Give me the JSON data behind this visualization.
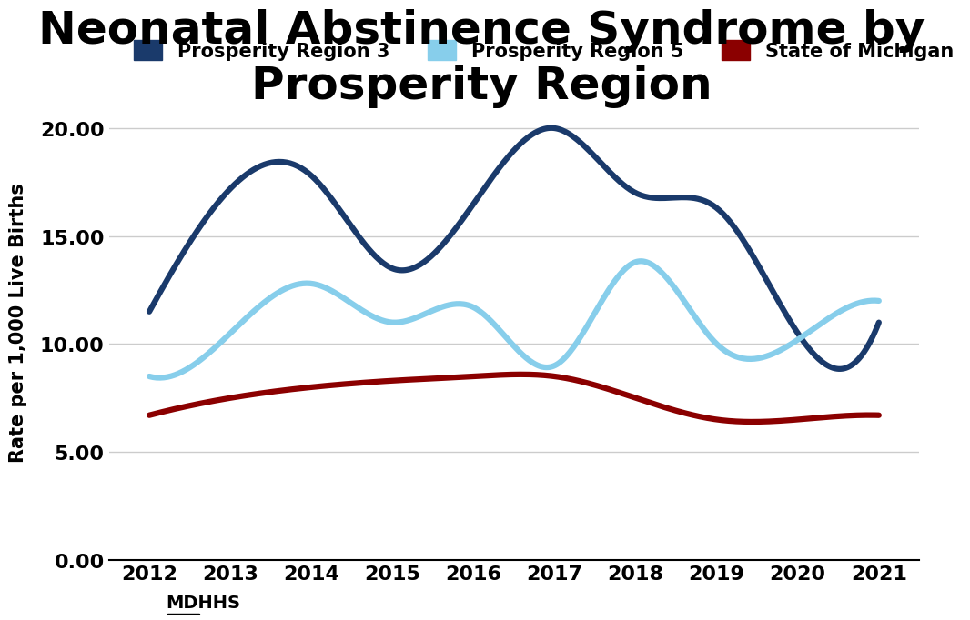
{
  "title_line1": "Neonatal Abstinence Syndrome by",
  "title_line2": "Prosperity Region",
  "years": [
    2012,
    2013,
    2014,
    2015,
    2016,
    2017,
    2018,
    2019,
    2020,
    2021
  ],
  "region3": [
    11.5,
    17.2,
    17.8,
    13.5,
    16.5,
    20.0,
    17.0,
    16.3,
    10.5,
    11.0
  ],
  "region5": [
    8.5,
    10.5,
    12.8,
    11.0,
    11.7,
    9.0,
    13.8,
    10.0,
    10.2,
    12.0
  ],
  "michigan": [
    6.7,
    7.5,
    8.0,
    8.3,
    8.5,
    8.5,
    7.5,
    6.5,
    6.5,
    6.7
  ],
  "region3_color": "#1a3a6b",
  "region5_color": "#87CEEB",
  "michigan_color": "#8B0000",
  "region3_label": "Prosperity Region 3",
  "region5_label": "Prosperity Region 5",
  "michigan_label": "State of Michigan",
  "ylabel": "Rate per 1,000 Live Births",
  "source": "MDHHS",
  "ylim": [
    0,
    22
  ],
  "yticks": [
    0.0,
    5.0,
    10.0,
    15.0,
    20.0
  ],
  "background_color": "#ffffff",
  "grid_color": "#cccccc",
  "linewidth": 4.5
}
